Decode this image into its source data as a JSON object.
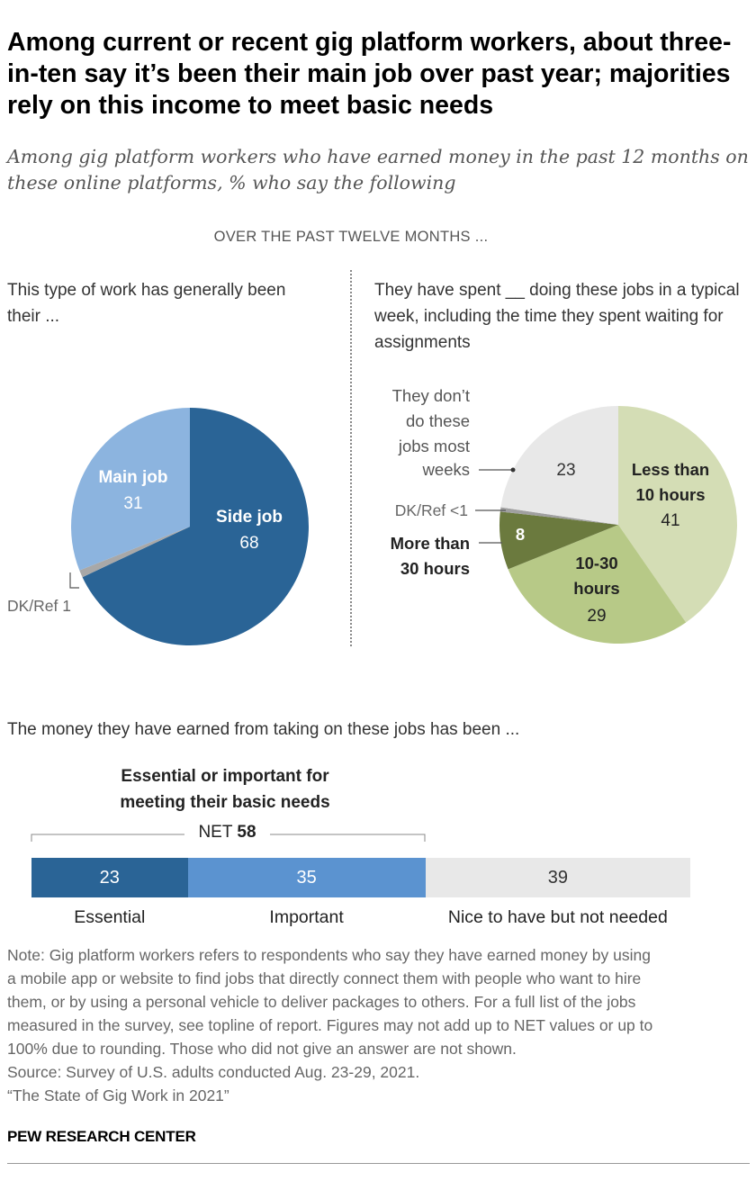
{
  "title": "Among current or recent gig platform workers, about three-in-ten say it’s been their main job over past year; majorities rely on this income to meet basic needs",
  "subtitle": "Among gig platform workers who have earned money in the past 12 months on these online platforms, % who say the following",
  "overline": "OVER THE PAST TWELVE MONTHS ...",
  "chart_data": [
    {
      "type": "pie",
      "title": "This type of work has generally been their ...",
      "slices": [
        {
          "name": "Side job",
          "value": 68,
          "color": "#2a6496",
          "label_color": "#ffffff",
          "bold": true
        },
        {
          "name": "DK/Ref",
          "value": 1,
          "color": "#a8a8a8",
          "label_color": "#555555"
        },
        {
          "name": "Main job",
          "value": 31,
          "color": "#8cb4df",
          "label_color": "#ffffff",
          "bold": true
        }
      ]
    },
    {
      "type": "pie",
      "title": "They have spent __ doing these jobs in a typical week, including the time they spent waiting for assignments",
      "slices": [
        {
          "name": "Less than 10 hours",
          "value": 41,
          "display": "41",
          "color": "#d4ddb5",
          "label_color": "#222222"
        },
        {
          "name": "10-30 hours",
          "value": 29,
          "display": "29",
          "color": "#b7c987",
          "label_color": "#222222"
        },
        {
          "name": "More than 30 hours",
          "value": 8,
          "display": "8",
          "color": "#6b7a3e",
          "label_color": "#ffffff"
        },
        {
          "name": "DK/Ref",
          "value": 0.6,
          "display": "<1",
          "color": "#a0a0a0",
          "label_color": "#555555"
        },
        {
          "name": "They don’t do these jobs most weeks",
          "value": 23,
          "display": "23",
          "color": "#e8e8e8",
          "label_color": "#333333"
        }
      ]
    },
    {
      "type": "bar",
      "orientation": "horizontal-stacked",
      "title": "The money they have earned from taking on these jobs has been ...",
      "net_label": "Essential or important for meeting their basic needs",
      "net_prefix": "NET",
      "net_value": "58",
      "segments": [
        {
          "name": "Essential",
          "value": 23,
          "color": "#2a6496",
          "text_color": "#ffffff"
        },
        {
          "name": "Important",
          "value": 35,
          "color": "#5b93d0",
          "text_color": "#ffffff"
        },
        {
          "name": "Nice to have but not needed",
          "value": 39,
          "color": "#e8e8e8",
          "text_color": "#333333"
        }
      ]
    }
  ],
  "pie1_labels": {
    "main_job_name": "Main job",
    "main_job_value": "31",
    "side_job_name": "Side job",
    "side_job_value": "68",
    "dkref": "DK/Ref 1"
  },
  "pie2_labels": {
    "less10_line1": "Less than",
    "less10_line2": "10 hours",
    "less10_value": "41",
    "mid_line1": "10-30",
    "mid_line2": "hours",
    "mid_value": "29",
    "more30_value": "8",
    "more30_line1": "More than",
    "more30_line2": "30 hours",
    "dkref": "DK/Ref <1",
    "notdo_line1": "They don’t",
    "notdo_line2": "do these",
    "notdo_line3": "jobs most",
    "notdo_line4": "weeks",
    "notdo_value": "23"
  },
  "note_lines": [
    "Note: Gig platform workers refers to respondents who say they have earned money by using",
    "a mobile app or website to find jobs that directly connect them with people who want to hire",
    "them, or by using a personal vehicle to deliver packages to others. For a full list of the jobs",
    "measured in the survey, see topline of report. Figures may not add up to NET values or up to",
    "100% due to rounding. Those who did not give an answer are not shown.",
    "Source: Survey of U.S. adults conducted Aug. 23-29, 2021.",
    "“The State of Gig Work in 2021”"
  ],
  "brand": "PEW RESEARCH CENTER"
}
